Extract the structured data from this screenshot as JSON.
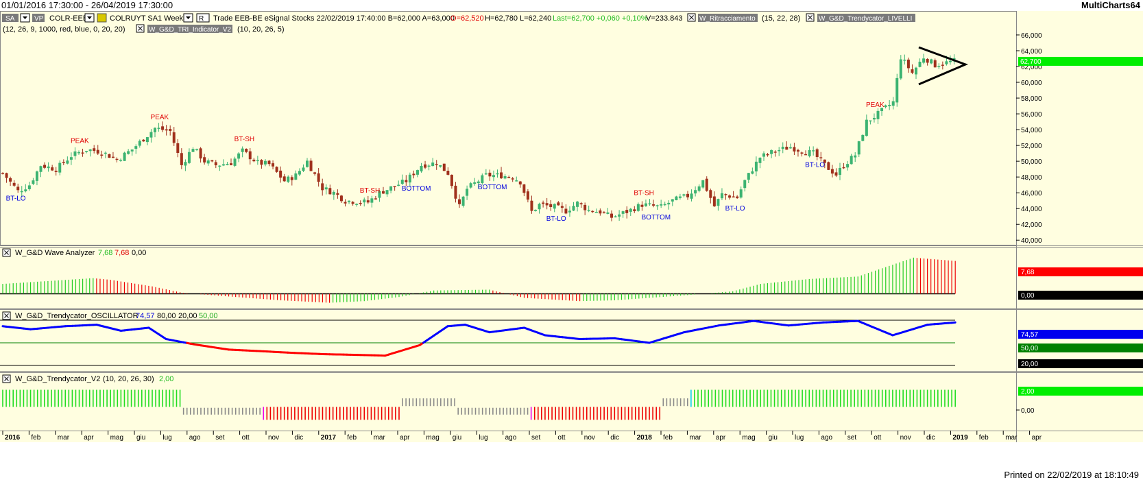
{
  "window": {
    "date_range": "01/01/2016 17:30:00 - 26/04/2019 17:30:00",
    "app_name": "MultiCharts64"
  },
  "toolbar": {
    "sa_btn": "SA",
    "vp_btn": "VP",
    "symbol": "COLR-EEB",
    "name": "COLRUYT SA",
    "interval": "1 Week",
    "r_btn": "R",
    "quote": "Trade  EEB-BE  eSignal Stocks  22/02/2019  17:40:00  B=62,000  A=63,000",
    "open": "O=62,520",
    "high": "H=62,780",
    "low": "L=62,240",
    "last": "Last=62,700  +0,060  +0,10%",
    "volume": "V=233.843",
    "ind1_name": "W_Ritracciamento",
    "ind1_params": "(15, 22, 28)",
    "ind2_name": "W_G&D_Trendycator_LIVELLI",
    "ind2_params": "(12, 26, 9, 1000, red, blue, 0, 20, 20)",
    "ind3_name": "W_G&D_TRI_Indicator_V2",
    "ind3_params": "(10, 20, 26, 5)"
  },
  "panels": {
    "wave": {
      "name": "W_G&D Wave Analyzer",
      "v1": "7,68",
      "v2": "7,68",
      "v3": "0,00",
      "tag_value": "7,68",
      "tag_zero": "0,00"
    },
    "osc": {
      "name": "W_G&D_Trendycator_OSCILLATOR",
      "v1": "74,57",
      "v2": "80,00",
      "v3": "20,00",
      "v4": "50,00",
      "tag_value": "74,57",
      "tag_mid": "50,00",
      "tag_low": "20,00"
    },
    "trend": {
      "name": "W_G&D_Trendycator_V2",
      "params": "(10, 20, 26, 30)",
      "v1": "2,00",
      "tag_value": "2,00",
      "tag_zero": "0,00"
    }
  },
  "footer": {
    "printed": "Printed on 22/02/2019 at 18:10:49"
  },
  "colors": {
    "background": "#fffee0",
    "bull_candle": "#3cb371",
    "bear_candle": "#a0301c",
    "osc_up": "#0000ff",
    "osc_down": "#ff0000",
    "last_tag": "#00ee00"
  },
  "chart_data": {
    "type": "candlestick",
    "price_axis": {
      "ticks": [
        "66,000",
        "64,000",
        "62,000",
        "60,000",
        "58,000",
        "56,000",
        "54,000",
        "52,000",
        "50,000",
        "48,000",
        "46,000",
        "44,000",
        "42,000",
        "40,000"
      ],
      "ylim": [
        39.5,
        67.3
      ],
      "last_price": 62.7,
      "last_label": "62,700"
    },
    "time_axis": {
      "labels": [
        "2016",
        "feb",
        "mar",
        "apr",
        "mag",
        "giu",
        "lug",
        "ago",
        "set",
        "ott",
        "nov",
        "dic",
        "2017",
        "feb",
        "mar",
        "apr",
        "mag",
        "giu",
        "lug",
        "ago",
        "set",
        "ott",
        "nov",
        "dic",
        "2018",
        "feb",
        "mar",
        "apr",
        "mag",
        "giu",
        "lug",
        "ago",
        "set",
        "ott",
        "nov",
        "dic",
        "2019",
        "feb",
        "mar",
        "apr"
      ],
      "bold_labels": [
        "2016",
        "2017",
        "2018",
        "2019"
      ]
    },
    "price_path": [
      [
        0,
        48.5
      ],
      [
        4,
        46.2
      ],
      [
        7,
        47.0
      ],
      [
        10,
        49.5
      ],
      [
        14,
        49.0
      ],
      [
        18,
        50.7
      ],
      [
        22,
        51.5
      ],
      [
        26,
        51.2
      ],
      [
        30,
        50.2
      ],
      [
        34,
        51.5
      ],
      [
        40,
        54.2
      ],
      [
        44,
        53.8
      ],
      [
        47,
        49.5
      ],
      [
        50,
        51.8
      ],
      [
        53,
        50.0
      ],
      [
        56,
        49.5
      ],
      [
        60,
        49.8
      ],
      [
        63,
        51.3
      ],
      [
        67,
        49.8
      ],
      [
        70,
        49.6
      ],
      [
        74,
        47.5
      ],
      [
        77,
        48.2
      ],
      [
        80,
        50.0
      ],
      [
        84,
        46.6
      ],
      [
        87,
        46.0
      ],
      [
        90,
        45.0
      ],
      [
        96,
        44.8
      ],
      [
        99,
        46.0
      ],
      [
        106,
        47.5
      ],
      [
        110,
        49.5
      ],
      [
        114,
        49.8
      ],
      [
        117,
        48.5
      ],
      [
        120,
        44.2
      ],
      [
        122,
        46.5
      ],
      [
        127,
        48.2
      ],
      [
        131,
        48.2
      ],
      [
        134,
        48.0
      ],
      [
        136,
        47.4
      ],
      [
        139,
        43.6
      ],
      [
        141,
        44.5
      ],
      [
        145,
        44.2
      ],
      [
        148,
        43.7
      ],
      [
        151,
        44.7
      ],
      [
        154,
        43.8
      ],
      [
        157,
        43.6
      ],
      [
        160,
        42.9
      ],
      [
        164,
        43.6
      ],
      [
        168,
        44.5
      ],
      [
        173,
        44.2
      ],
      [
        176,
        45.0
      ],
      [
        180,
        45.6
      ],
      [
        184,
        47.5
      ],
      [
        187,
        44.3
      ],
      [
        189,
        45.8
      ],
      [
        193,
        45.4
      ],
      [
        195,
        47.5
      ],
      [
        199,
        50.5
      ],
      [
        203,
        51.3
      ],
      [
        207,
        51.8
      ],
      [
        210,
        51.3
      ],
      [
        213,
        51.0
      ],
      [
        216,
        49.5
      ],
      [
        219,
        48.3
      ],
      [
        221,
        49.5
      ],
      [
        224,
        50.8
      ],
      [
        227,
        55.0
      ],
      [
        230,
        56.0
      ],
      [
        234,
        57.5
      ],
      [
        236,
        63.2
      ],
      [
        239,
        61.2
      ],
      [
        242,
        63.2
      ],
      [
        245,
        62.2
      ],
      [
        247,
        62.4
      ],
      [
        250,
        62.7
      ]
    ],
    "candle_count": 251,
    "annotations": [
      {
        "text": "BT-LO",
        "bar": 3,
        "kind": "low"
      },
      {
        "text": "PEAK",
        "bar": 20,
        "kind": "high"
      },
      {
        "text": "PEAK",
        "bar": 41,
        "kind": "high"
      },
      {
        "text": "BT-SH",
        "bar": 63,
        "kind": "high"
      },
      {
        "text": "BT-SH",
        "bar": 96,
        "kind": "high"
      },
      {
        "text": "BOTTOM",
        "bar": 107,
        "kind": "low"
      },
      {
        "text": "BOTTOM",
        "bar": 127,
        "kind": "low"
      },
      {
        "text": "BT-LO",
        "bar": 145,
        "kind": "low"
      },
      {
        "text": "BT-SH",
        "bar": 168,
        "kind": "high"
      },
      {
        "text": "BOTTOM",
        "bar": 170,
        "kind": "low"
      },
      {
        "text": "BT-LO",
        "bar": 192,
        "kind": "low"
      },
      {
        "text": "BT-LO",
        "bar": 213,
        "kind": "low"
      },
      {
        "text": "PEAK",
        "bar": 229,
        "kind": "high"
      }
    ],
    "wave_analyzer": {
      "ylim": [
        -1.3,
        4.8
      ],
      "path": [
        [
          0,
          1.2
        ],
        [
          26,
          1.9
        ],
        [
          31,
          1.7
        ],
        [
          43,
          0.9
        ],
        [
          52,
          0.1
        ],
        [
          64,
          -0.3
        ],
        [
          80,
          -0.8
        ],
        [
          94,
          -1.1
        ],
        [
          104,
          -0.9
        ],
        [
          114,
          -0.4
        ],
        [
          124,
          0.4
        ],
        [
          140,
          0.5
        ],
        [
          150,
          -0.5
        ],
        [
          166,
          -0.9
        ],
        [
          176,
          -0.8
        ],
        [
          196,
          -0.2
        ],
        [
          210,
          0.3
        ],
        [
          218,
          1.2
        ],
        [
          232,
          1.8
        ],
        [
          246,
          2.1
        ],
        [
          262,
          4.4
        ],
        [
          274,
          4.0
        ]
      ]
    },
    "oscillator": {
      "ylim": [
        10,
        90
      ],
      "lines": [
        80,
        50,
        20
      ],
      "path": [
        [
          0,
          72
        ],
        [
          8,
          68
        ],
        [
          18,
          72
        ],
        [
          27,
          74
        ],
        [
          34,
          66
        ],
        [
          42,
          70
        ],
        [
          47,
          55
        ],
        [
          55,
          48
        ],
        [
          65,
          41
        ],
        [
          74,
          39
        ],
        [
          82,
          37
        ],
        [
          92,
          35
        ],
        [
          102,
          34
        ],
        [
          110,
          33
        ],
        [
          120,
          47
        ],
        [
          128,
          72
        ],
        [
          133,
          74
        ],
        [
          140,
          64
        ],
        [
          150,
          70
        ],
        [
          156,
          60
        ],
        [
          166,
          55
        ],
        [
          176,
          56
        ],
        [
          186,
          50
        ],
        [
          196,
          64
        ],
        [
          206,
          73
        ],
        [
          216,
          79
        ],
        [
          226,
          73
        ],
        [
          236,
          77
        ],
        [
          246,
          79
        ],
        [
          256,
          60
        ],
        [
          266,
          74
        ],
        [
          274,
          77
        ]
      ],
      "threshold": 50
    },
    "trendycator": {
      "ylim": [
        -1.8,
        3.0
      ],
      "segments": [
        {
          "from": 0,
          "to": 51,
          "state": "green"
        },
        {
          "from": 52,
          "to": 74,
          "state": "gray-low"
        },
        {
          "from": 75,
          "to": 75,
          "state": "magenta"
        },
        {
          "from": 76,
          "to": 114,
          "state": "red"
        },
        {
          "from": 115,
          "to": 130,
          "state": "gray-high"
        },
        {
          "from": 131,
          "to": 151,
          "state": "gray-low"
        },
        {
          "from": 152,
          "to": 152,
          "state": "magenta"
        },
        {
          "from": 153,
          "to": 189,
          "state": "red"
        },
        {
          "from": 190,
          "to": 197,
          "state": "gray-high"
        },
        {
          "from": 198,
          "to": 198,
          "state": "cyan"
        },
        {
          "from": 199,
          "to": 274,
          "state": "green"
        }
      ]
    }
  }
}
